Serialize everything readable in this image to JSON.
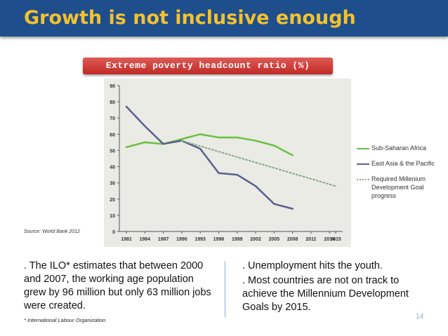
{
  "slide": {
    "title": "Growth is not inclusive enough",
    "source": "Source: World Bank 2012",
    "left_text": ". The ILO* estimates that between 2000 and 2007, the working age population grew by 96 million but only 63 million jobs were created.",
    "footnote": "* International Labour Organization",
    "right_text": [
      ". Unemployment hits the youth.",
      ". Most countries are not on track to achieve the Millennium Development Goals by 2015."
    ],
    "page_number": "14"
  },
  "chart_data": {
    "type": "line",
    "title": "Extreme poverty headcount ratio (%)",
    "xlabel": "",
    "ylabel": "",
    "ylim": [
      0,
      90
    ],
    "yticks": [
      "0",
      "10",
      "20",
      "30",
      "40",
      "50",
      "60",
      "70",
      "80",
      "90"
    ],
    "categories": [
      "1981",
      "1984",
      "1987",
      "1990",
      "1993",
      "1996",
      "1999",
      "2002",
      "2005",
      "2008",
      "2011",
      "2014",
      "2015"
    ],
    "series": [
      {
        "name": "Sub-Saharan Africa",
        "color": "#6abf45",
        "dash": false,
        "points": [
          [
            1981,
            52
          ],
          [
            1984,
            55
          ],
          [
            1987,
            54
          ],
          [
            1990,
            57
          ],
          [
            1993,
            60
          ],
          [
            1996,
            58
          ],
          [
            1999,
            58
          ],
          [
            2002,
            56
          ],
          [
            2005,
            53
          ],
          [
            2008,
            47
          ]
        ]
      },
      {
        "name": "East Asia & the Pacific",
        "color": "#5a5f8f",
        "dash": false,
        "points": [
          [
            1981,
            77
          ],
          [
            1984,
            65
          ],
          [
            1987,
            54
          ],
          [
            1990,
            56
          ],
          [
            1993,
            51
          ],
          [
            1996,
            36
          ],
          [
            1999,
            35
          ],
          [
            2002,
            28
          ],
          [
            2005,
            17
          ],
          [
            2008,
            14
          ]
        ]
      },
      {
        "name": "Required Millenium Development Goal progress",
        "color": "#8aa88a",
        "dash": true,
        "points": [
          [
            1990,
            56
          ],
          [
            2015,
            28
          ]
        ]
      }
    ],
    "legend_position": "right"
  }
}
